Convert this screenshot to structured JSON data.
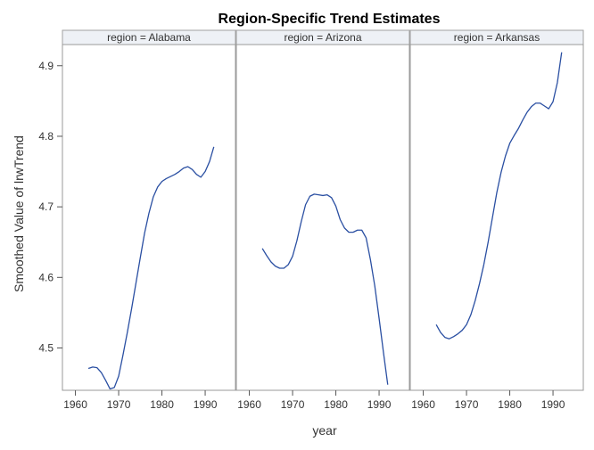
{
  "chart_data": {
    "type": "line",
    "title": "Region-Specific Trend Estimates",
    "xlabel": "year",
    "ylabel": "Smoothed Value of lrwTrend",
    "xlim": [
      1957,
      1997
    ],
    "ylim": [
      4.44,
      4.93
    ],
    "xticks": [
      "1960",
      "1970",
      "1980",
      "1990"
    ],
    "yticks": [
      "4.5",
      "4.6",
      "4.7",
      "4.8",
      "4.9"
    ],
    "line_color": "#2a4fa2",
    "panels": [
      {
        "name": "region = Alabama",
        "x": [
          1963,
          1964,
          1965,
          1966,
          1967,
          1968,
          1969,
          1970,
          1971,
          1972,
          1973,
          1974,
          1975,
          1976,
          1977,
          1978,
          1979,
          1980,
          1981,
          1982,
          1983,
          1984,
          1985,
          1986,
          1987,
          1988,
          1989,
          1990,
          1991,
          1992
        ],
        "y": [
          4.471,
          4.473,
          4.472,
          4.465,
          4.454,
          4.442,
          4.444,
          4.46,
          4.49,
          4.522,
          4.556,
          4.592,
          4.628,
          4.663,
          4.691,
          4.714,
          4.728,
          4.736,
          4.74,
          4.743,
          4.746,
          4.75,
          4.755,
          4.757,
          4.753,
          4.746,
          4.742,
          4.75,
          4.764,
          4.785
        ]
      },
      {
        "name": "region = Arizona",
        "x": [
          1963,
          1964,
          1965,
          1966,
          1967,
          1968,
          1969,
          1970,
          1971,
          1972,
          1973,
          1974,
          1975,
          1976,
          1977,
          1978,
          1979,
          1980,
          1981,
          1982,
          1983,
          1984,
          1985,
          1986,
          1987,
          1988,
          1989,
          1990,
          1991,
          1992
        ],
        "y": [
          4.641,
          4.631,
          4.622,
          4.616,
          4.613,
          4.613,
          4.618,
          4.63,
          4.652,
          4.679,
          4.703,
          4.715,
          4.718,
          4.717,
          4.716,
          4.717,
          4.713,
          4.701,
          4.682,
          4.67,
          4.664,
          4.664,
          4.667,
          4.667,
          4.656,
          4.625,
          4.588,
          4.542,
          4.494,
          4.448
        ]
      },
      {
        "name": "region = Arkansas",
        "x": [
          1963,
          1964,
          1965,
          1966,
          1967,
          1968,
          1969,
          1970,
          1971,
          1972,
          1973,
          1974,
          1975,
          1976,
          1977,
          1978,
          1979,
          1980,
          1981,
          1982,
          1983,
          1984,
          1985,
          1986,
          1987,
          1988,
          1989,
          1990,
          1991,
          1992
        ],
        "y": [
          4.533,
          4.522,
          4.515,
          4.513,
          4.516,
          4.52,
          4.525,
          4.533,
          4.547,
          4.567,
          4.591,
          4.618,
          4.65,
          4.685,
          4.72,
          4.749,
          4.772,
          4.79,
          4.801,
          4.811,
          4.823,
          4.834,
          4.842,
          4.847,
          4.847,
          4.843,
          4.839,
          4.849,
          4.876,
          4.919
        ]
      }
    ]
  }
}
